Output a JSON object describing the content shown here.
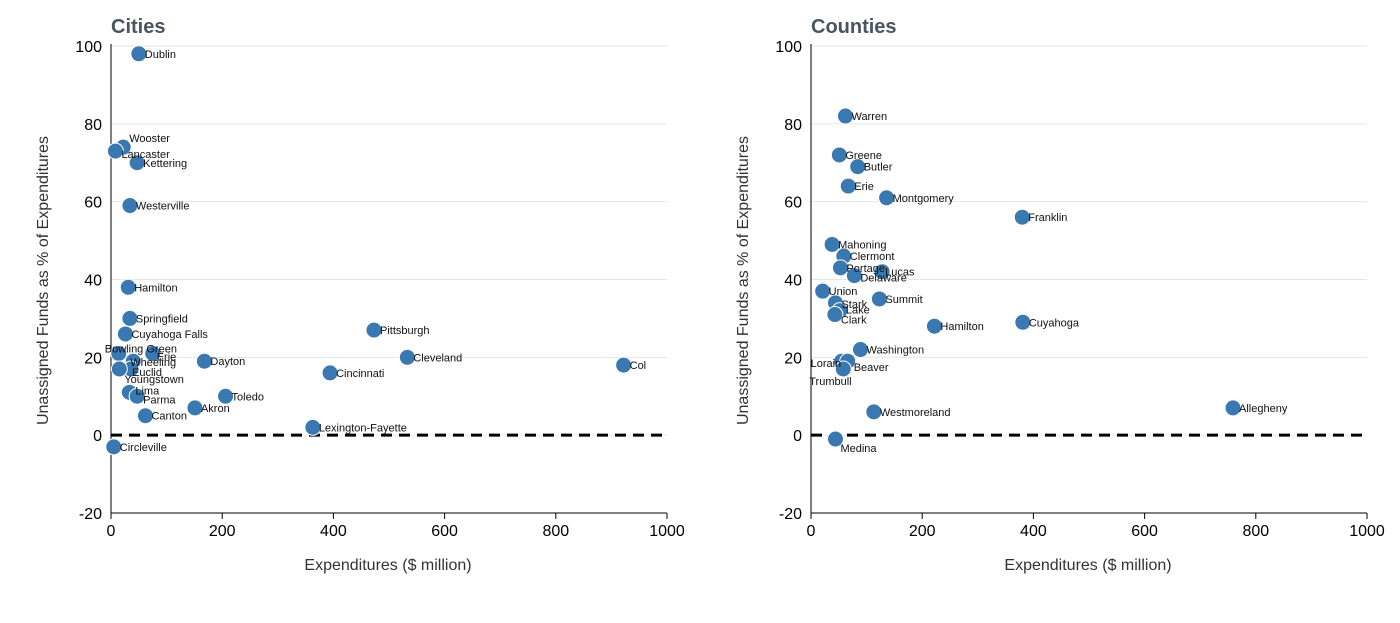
{
  "colors": {
    "point": "#3a78b1",
    "grid": "#e6e6e6",
    "title": "#4a5560"
  },
  "chart_data": [
    {
      "type": "scatter",
      "title": "Cities",
      "xlabel": "Expenditures ($ million)",
      "ylabel": "Unassigned Funds as % of Expenditures",
      "xlim": [
        0,
        1000
      ],
      "ylim": [
        -20,
        100
      ],
      "xticks": [
        0,
        200,
        400,
        600,
        800,
        1000
      ],
      "yticks": [
        -20,
        0,
        20,
        40,
        60,
        80,
        100
      ],
      "grid": true,
      "reference_line": {
        "y": 0,
        "style": "dashed"
      },
      "points": [
        {
          "label": "Dublin",
          "x": 50,
          "y": 98
        },
        {
          "label": "Wooster",
          "x": 22,
          "y": 74
        },
        {
          "label": "Lancaster",
          "x": 8,
          "y": 73
        },
        {
          "label": "Kettering",
          "x": 47,
          "y": 70
        },
        {
          "label": "Westerville",
          "x": 34,
          "y": 59
        },
        {
          "label": "Hamilton",
          "x": 31,
          "y": 38
        },
        {
          "label": "Springfield",
          "x": 34,
          "y": 30
        },
        {
          "label": "Cuyahoga Falls",
          "x": 26,
          "y": 26
        },
        {
          "label": "Pittsburgh",
          "x": 473,
          "y": 27
        },
        {
          "label": "Bowling Green",
          "x": 14,
          "y": 21
        },
        {
          "label": "Erie",
          "x": 75,
          "y": 21
        },
        {
          "label": "Wheeling",
          "x": 40,
          "y": 19
        },
        {
          "label": "Dayton",
          "x": 168,
          "y": 19
        },
        {
          "label": "Cleveland",
          "x": 533,
          "y": 20
        },
        {
          "label": "Col",
          "x": 922,
          "y": 18
        },
        {
          "label": "Euclid",
          "x": 36,
          "y": 17
        },
        {
          "label": "Cincinnati",
          "x": 394,
          "y": 16
        },
        {
          "label": "Youngstown",
          "x": 15,
          "y": 17
        },
        {
          "label": "Lima",
          "x": 33,
          "y": 11
        },
        {
          "label": "Parma",
          "x": 47,
          "y": 10
        },
        {
          "label": "Toledo",
          "x": 206,
          "y": 10
        },
        {
          "label": "Akron",
          "x": 151,
          "y": 7
        },
        {
          "label": "Canton",
          "x": 62,
          "y": 5
        },
        {
          "label": "Lexington-Fayette",
          "x": 363,
          "y": 2
        },
        {
          "label": "Circleville",
          "x": 5,
          "y": -3
        }
      ]
    },
    {
      "type": "scatter",
      "title": "Counties",
      "xlabel": "Expenditures ($ million)",
      "ylabel": "Unassigned Funds as % of Expenditures",
      "xlim": [
        0,
        1000
      ],
      "ylim": [
        -20,
        100
      ],
      "xticks": [
        0,
        200,
        400,
        600,
        800,
        1000
      ],
      "yticks": [
        -20,
        0,
        20,
        40,
        60,
        80,
        100
      ],
      "grid": true,
      "reference_line": {
        "y": 0,
        "style": "dashed"
      },
      "points": [
        {
          "label": "Warren",
          "x": 62,
          "y": 82
        },
        {
          "label": "Greene",
          "x": 51,
          "y": 72
        },
        {
          "label": "Butler",
          "x": 84,
          "y": 69
        },
        {
          "label": "Erie",
          "x": 67,
          "y": 64
        },
        {
          "label": "Montgomery",
          "x": 136,
          "y": 61
        },
        {
          "label": "Franklin",
          "x": 380,
          "y": 56
        },
        {
          "label": "Mahoning",
          "x": 38,
          "y": 49
        },
        {
          "label": "Clermont",
          "x": 59,
          "y": 46
        },
        {
          "label": "Portage",
          "x": 53,
          "y": 43
        },
        {
          "label": "Lucas",
          "x": 128,
          "y": 42
        },
        {
          "label": "Delaware",
          "x": 78,
          "y": 41
        },
        {
          "label": "Union",
          "x": 21,
          "y": 37
        },
        {
          "label": "Summit",
          "x": 123,
          "y": 35
        },
        {
          "label": "Stark",
          "x": 44,
          "y": 34
        },
        {
          "label": "Lake",
          "x": 52,
          "y": 32
        },
        {
          "label": "Clark",
          "x": 43,
          "y": 31
        },
        {
          "label": "Cuyahoga",
          "x": 381,
          "y": 29
        },
        {
          "label": "Hamilton",
          "x": 222,
          "y": 28
        },
        {
          "label": "Washington",
          "x": 89,
          "y": 22
        },
        {
          "label": "Lorain",
          "x": 55,
          "y": 19
        },
        {
          "label": "Beaver",
          "x": 66,
          "y": 19
        },
        {
          "label": "Trumbull",
          "x": 58,
          "y": 17
        },
        {
          "label": "Allegheny",
          "x": 759,
          "y": 7
        },
        {
          "label": "Westmoreland",
          "x": 113,
          "y": 6
        },
        {
          "label": "Medina",
          "x": 44,
          "y": -1
        }
      ]
    }
  ]
}
